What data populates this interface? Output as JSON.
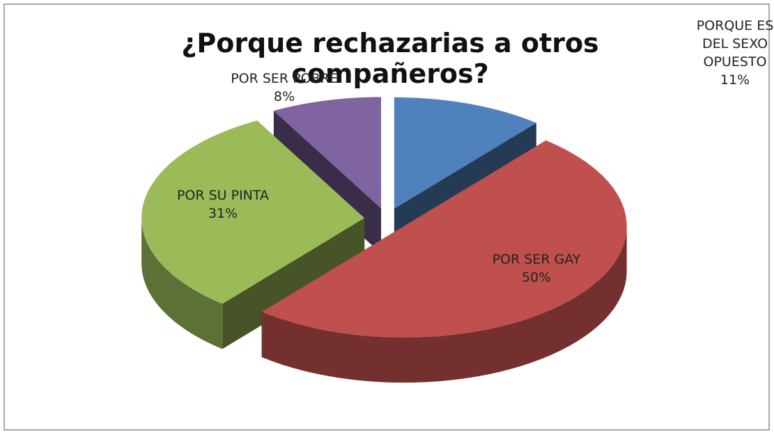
{
  "chart_data": {
    "type": "pie",
    "title": "¿Porque rechazarias a otros compañeros?",
    "categories": [
      "PORQUE ES DEL SEXO OPUESTO",
      "POR SER GAY",
      "POR SU PINTA",
      "POR SER POBRE"
    ],
    "values": [
      11,
      50,
      31,
      8
    ],
    "value_labels": [
      "11%",
      "50%",
      "31%",
      "8%"
    ],
    "colors": [
      "#4f81bd",
      "#c0504d",
      "#9bbb59",
      "#8064a2"
    ]
  }
}
